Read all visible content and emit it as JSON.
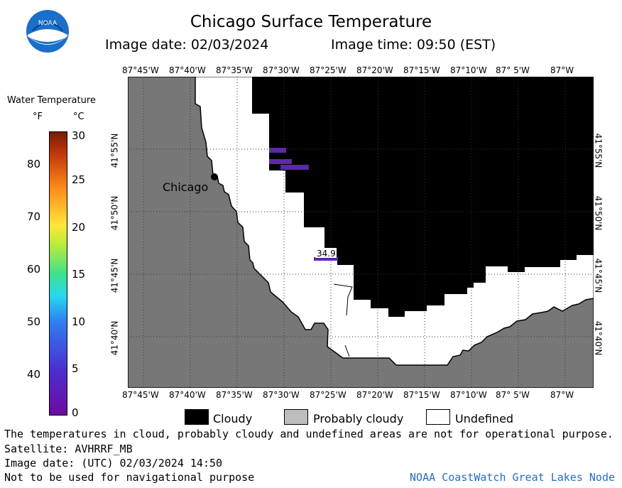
{
  "header": {
    "title": "Chicago Surface Temperature",
    "image_date": "Image date: 02/03/2024",
    "image_time": "Image time: 09:50 (EST)",
    "logo_text": "NOAA"
  },
  "colorbar": {
    "title": "Water Temperature",
    "unit_f": "°F",
    "unit_c": "°C",
    "ticks_f": [
      "80",
      "70",
      "60",
      "50",
      "40"
    ],
    "ticks_c": [
      "30",
      "25",
      "20",
      "15",
      "10",
      "5",
      "0"
    ]
  },
  "map": {
    "lon_labels": [
      "87°45'W",
      "87°40'W",
      "87°35'W",
      "87°30'W",
      "87°25'W",
      "87°20'W",
      "87°15'W",
      "87°10'W",
      "87° 5'W",
      "87°W"
    ],
    "lat_labels": [
      "41°55'N",
      "41°50'N",
      "41°45'N",
      "41°40'N"
    ],
    "city_label": "Chicago",
    "temp_annotation": "34.9",
    "colors": {
      "land": "#777777",
      "cloudy": "#000000",
      "undefined": "#ffffff",
      "cold_water": "#5a2aa8"
    }
  },
  "legend": {
    "cloudy": "Cloudy",
    "probably_cloudy": "Probably cloudy",
    "undefined": "Undefined"
  },
  "footer": {
    "line1": "The temperatures in cloud, probably cloudy and undefined areas are not for operational purpose.",
    "line2": "Satellite: AVHRRF_MB",
    "line3": "Image date: (UTC) 02/03/2024  14:50",
    "line4": "Not to be used for navigational purpose",
    "credit": "NOAA CoastWatch Great Lakes Node"
  }
}
